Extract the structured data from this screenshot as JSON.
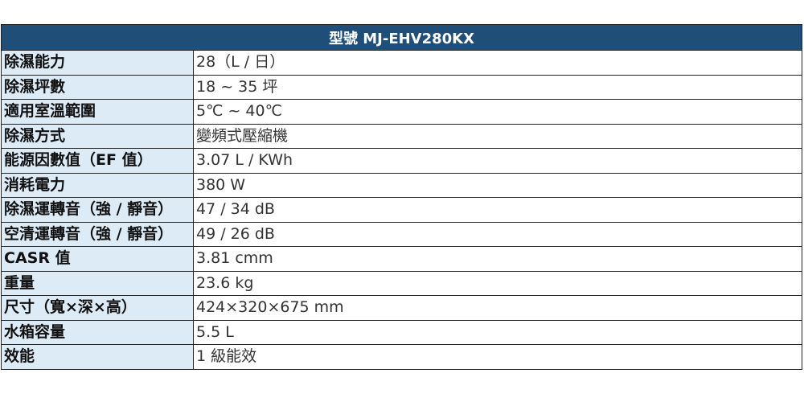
{
  "title": "型號 MJ-EHV280KX",
  "colors": {
    "header_bg": "#1f4e79",
    "label_bg": "#ddebf7"
  },
  "rows": [
    {
      "label": "除濕能力",
      "value": "28（L / 日）"
    },
    {
      "label": "除濕坪數",
      "value": "18 ~ 35 坪"
    },
    {
      "label": "適用室溫範圍",
      "value": "5℃ ~ 40℃"
    },
    {
      "label": "除濕方式",
      "value": "變頻式壓縮機"
    },
    {
      "label": "能源因數值（EF 值）",
      "value": "3.07 L / KWh"
    },
    {
      "label": "消耗電力",
      "value": "380 W"
    },
    {
      "label": "除濕運轉音（強 / 靜音）",
      "value": "47 / 34 dB"
    },
    {
      "label": "空清運轉音（強 / 靜音）",
      "value": "49 / 26 dB"
    },
    {
      "label": "CASR 值",
      "value": "3.81 cmm"
    },
    {
      "label": "重量",
      "value": "23.6 kg"
    },
    {
      "label": "尺寸（寬×深×高）",
      "value": "424×320×675 mm"
    },
    {
      "label": "水箱容量",
      "value": "5.5 L"
    },
    {
      "label": "效能",
      "value": "1 級能效"
    }
  ]
}
